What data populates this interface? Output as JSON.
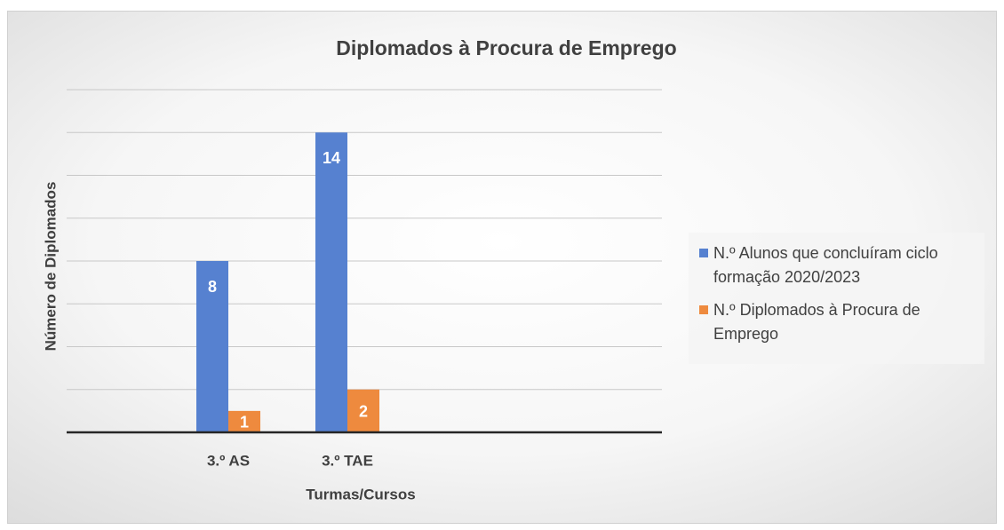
{
  "chart_data": {
    "type": "bar",
    "title": "Diplomados à Procura de Emprego",
    "x_label": "Turmas/Cursos",
    "y_label": "Número de Diplomados",
    "categories": [
      null,
      "3.º AS",
      "3.º TAE",
      null,
      null
    ],
    "series": [
      {
        "name": "N.º Alunos que concluíram ciclo formação 2020/2023",
        "color": "#5681d0",
        "values": [
          null,
          8,
          14,
          null,
          null
        ]
      },
      {
        "name": "N.º Diplomados à Procura de Emprego",
        "color": "#ee8a3e",
        "values": [
          null,
          1,
          2,
          null,
          null
        ]
      }
    ],
    "ylim": [
      0,
      16
    ],
    "yticks": [
      0,
      2,
      4,
      6,
      8,
      10,
      12,
      14,
      16
    ],
    "grid": true,
    "legend": "right"
  }
}
